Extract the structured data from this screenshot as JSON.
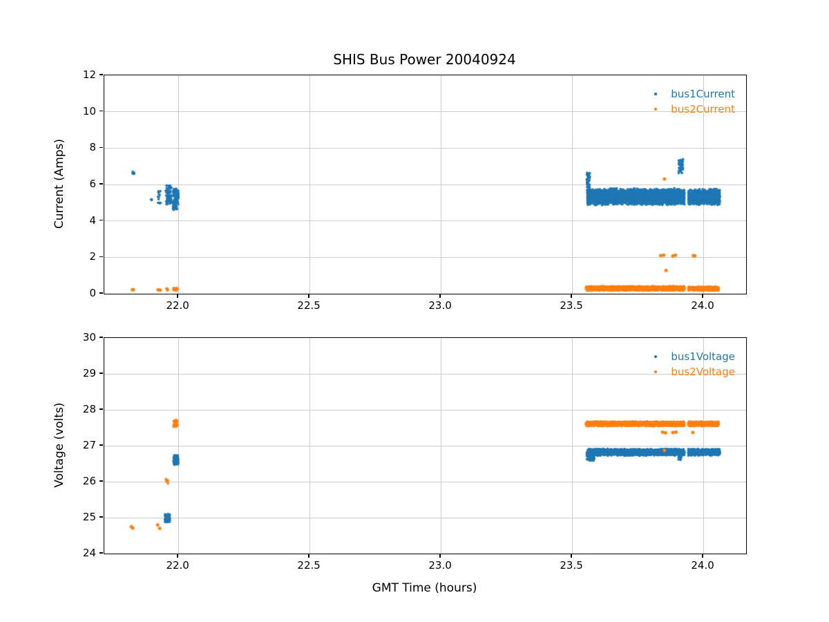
{
  "figure": {
    "title": "SHIS Bus Power 20040924",
    "background": "#ffffff",
    "grid_color": "#cccccc",
    "text_color": "#000000"
  },
  "chart_data": [
    {
      "type": "scatter",
      "title": "SHIS Bus Power 20040924",
      "xlabel": "",
      "ylabel": "Current (Amps)",
      "xlim": [
        21.718,
        24.163
      ],
      "ylim": [
        0,
        12
      ],
      "xticks": [
        22.0,
        22.5,
        23.0,
        23.5,
        24.0
      ],
      "xtick_labels": [
        "22.0",
        "22.5",
        "23.0",
        "23.5",
        "24.0"
      ],
      "yticks": [
        0,
        2,
        4,
        6,
        8,
        10,
        12
      ],
      "ytick_labels": [
        "0",
        "2",
        "4",
        "6",
        "8",
        "10",
        "12"
      ],
      "grid": true,
      "legend_position": "upper right",
      "series": [
        {
          "name": "bus1Current",
          "color": "#1f77b4",
          "clusters": [
            {
              "x0": 21.824,
              "x1": 21.833,
              "y0": 6.45,
              "y1": 6.75,
              "n": 6
            },
            {
              "x0": 21.895,
              "x1": 21.9,
              "y0": 5.1,
              "y1": 5.25,
              "n": 3
            },
            {
              "x0": 21.922,
              "x1": 21.935,
              "y0": 4.95,
              "y1": 5.75,
              "n": 14
            },
            {
              "x0": 21.952,
              "x1": 21.974,
              "y0": 4.9,
              "y1": 5.95,
              "n": 80
            },
            {
              "x0": 21.979,
              "x1": 22.001,
              "y0": 4.6,
              "y1": 5.8,
              "n": 110
            },
            {
              "x0": 23.556,
              "x1": 23.568,
              "y0": 5.4,
              "y1": 6.65,
              "n": 60
            },
            {
              "x0": 23.558,
              "x1": 23.928,
              "y0": 4.85,
              "y1": 5.8,
              "n": 3400,
              "dist": "tri"
            },
            {
              "x0": 23.943,
              "x1": 24.063,
              "y0": 4.85,
              "y1": 5.78,
              "n": 1150,
              "dist": "tri"
            },
            {
              "x0": 23.906,
              "x1": 23.923,
              "y0": 6.6,
              "y1": 7.4,
              "n": 45
            }
          ],
          "points": []
        },
        {
          "name": "bus2Current",
          "color": "#ff7f0e",
          "clusters": [
            {
              "x0": 21.952,
              "x1": 21.962,
              "y0": 0.18,
              "y1": 0.3,
              "n": 8
            },
            {
              "x0": 21.979,
              "x1": 21.999,
              "y0": 0.18,
              "y1": 0.32,
              "n": 16
            },
            {
              "x0": 23.553,
              "x1": 23.928,
              "y0": 0.16,
              "y1": 0.42,
              "n": 2400,
              "dist": "tri"
            },
            {
              "x0": 23.943,
              "x1": 24.058,
              "y0": 0.16,
              "y1": 0.4,
              "n": 750,
              "dist": "tri"
            }
          ],
          "points": [
            [
              21.825,
              0.22
            ],
            [
              21.829,
              0.22
            ],
            [
              21.923,
              0.22
            ],
            [
              21.931,
              0.2
            ],
            [
              23.852,
              6.3
            ],
            [
              23.858,
              1.28
            ],
            [
              23.838,
              2.1
            ],
            [
              23.849,
              2.12
            ],
            [
              23.884,
              2.08
            ],
            [
              23.894,
              2.12
            ],
            [
              23.962,
              2.1
            ],
            [
              23.968,
              2.08
            ]
          ]
        }
      ]
    },
    {
      "type": "scatter",
      "title": "",
      "xlabel": "GMT Time (hours)",
      "ylabel": "Voltage (volts)",
      "xlim": [
        21.718,
        24.163
      ],
      "ylim": [
        24,
        30
      ],
      "xticks": [
        22.0,
        22.5,
        23.0,
        23.5,
        24.0
      ],
      "xtick_labels": [
        "22.0",
        "22.5",
        "23.0",
        "23.5",
        "24.0"
      ],
      "yticks": [
        24,
        25,
        26,
        27,
        28,
        29,
        30
      ],
      "ytick_labels": [
        "24",
        "25",
        "26",
        "27",
        "28",
        "29",
        "30"
      ],
      "grid": true,
      "legend_position": "upper right",
      "series": [
        {
          "name": "bus1Voltage",
          "color": "#1f77b4",
          "clusters": [
            {
              "x0": 21.948,
              "x1": 21.968,
              "y0": 24.87,
              "y1": 25.1,
              "n": 45
            },
            {
              "x0": 21.98,
              "x1": 22.0,
              "y0": 26.47,
              "y1": 26.74,
              "n": 70
            },
            {
              "x0": 23.556,
              "x1": 23.585,
              "y0": 26.58,
              "y1": 26.82,
              "n": 80
            },
            {
              "x0": 23.56,
              "x1": 23.928,
              "y0": 26.72,
              "y1": 26.92,
              "n": 2800,
              "dist": "tri"
            },
            {
              "x0": 23.943,
              "x1": 24.063,
              "y0": 26.72,
              "y1": 26.92,
              "n": 900,
              "dist": "tri"
            },
            {
              "x0": 23.905,
              "x1": 23.917,
              "y0": 26.6,
              "y1": 26.74,
              "n": 18
            }
          ],
          "points": []
        },
        {
          "name": "bus2Voltage",
          "color": "#ff7f0e",
          "clusters": [
            {
              "x0": 21.953,
              "x1": 21.962,
              "y0": 25.95,
              "y1": 26.08,
              "n": 10
            },
            {
              "x0": 21.982,
              "x1": 21.997,
              "y0": 27.53,
              "y1": 27.72,
              "n": 35
            },
            {
              "x0": 23.553,
              "x1": 23.928,
              "y0": 27.54,
              "y1": 27.68,
              "n": 2600,
              "dist": "tri"
            },
            {
              "x0": 23.943,
              "x1": 24.058,
              "y0": 27.54,
              "y1": 27.68,
              "n": 800,
              "dist": "tri"
            }
          ],
          "points": [
            [
              21.821,
              24.75
            ],
            [
              21.826,
              24.71
            ],
            [
              21.921,
              24.8
            ],
            [
              21.929,
              24.7
            ],
            [
              23.845,
              27.38
            ],
            [
              23.856,
              27.36
            ],
            [
              23.884,
              27.37
            ],
            [
              23.896,
              27.38
            ],
            [
              23.96,
              27.37
            ],
            [
              23.852,
              26.87
            ]
          ]
        }
      ]
    }
  ]
}
